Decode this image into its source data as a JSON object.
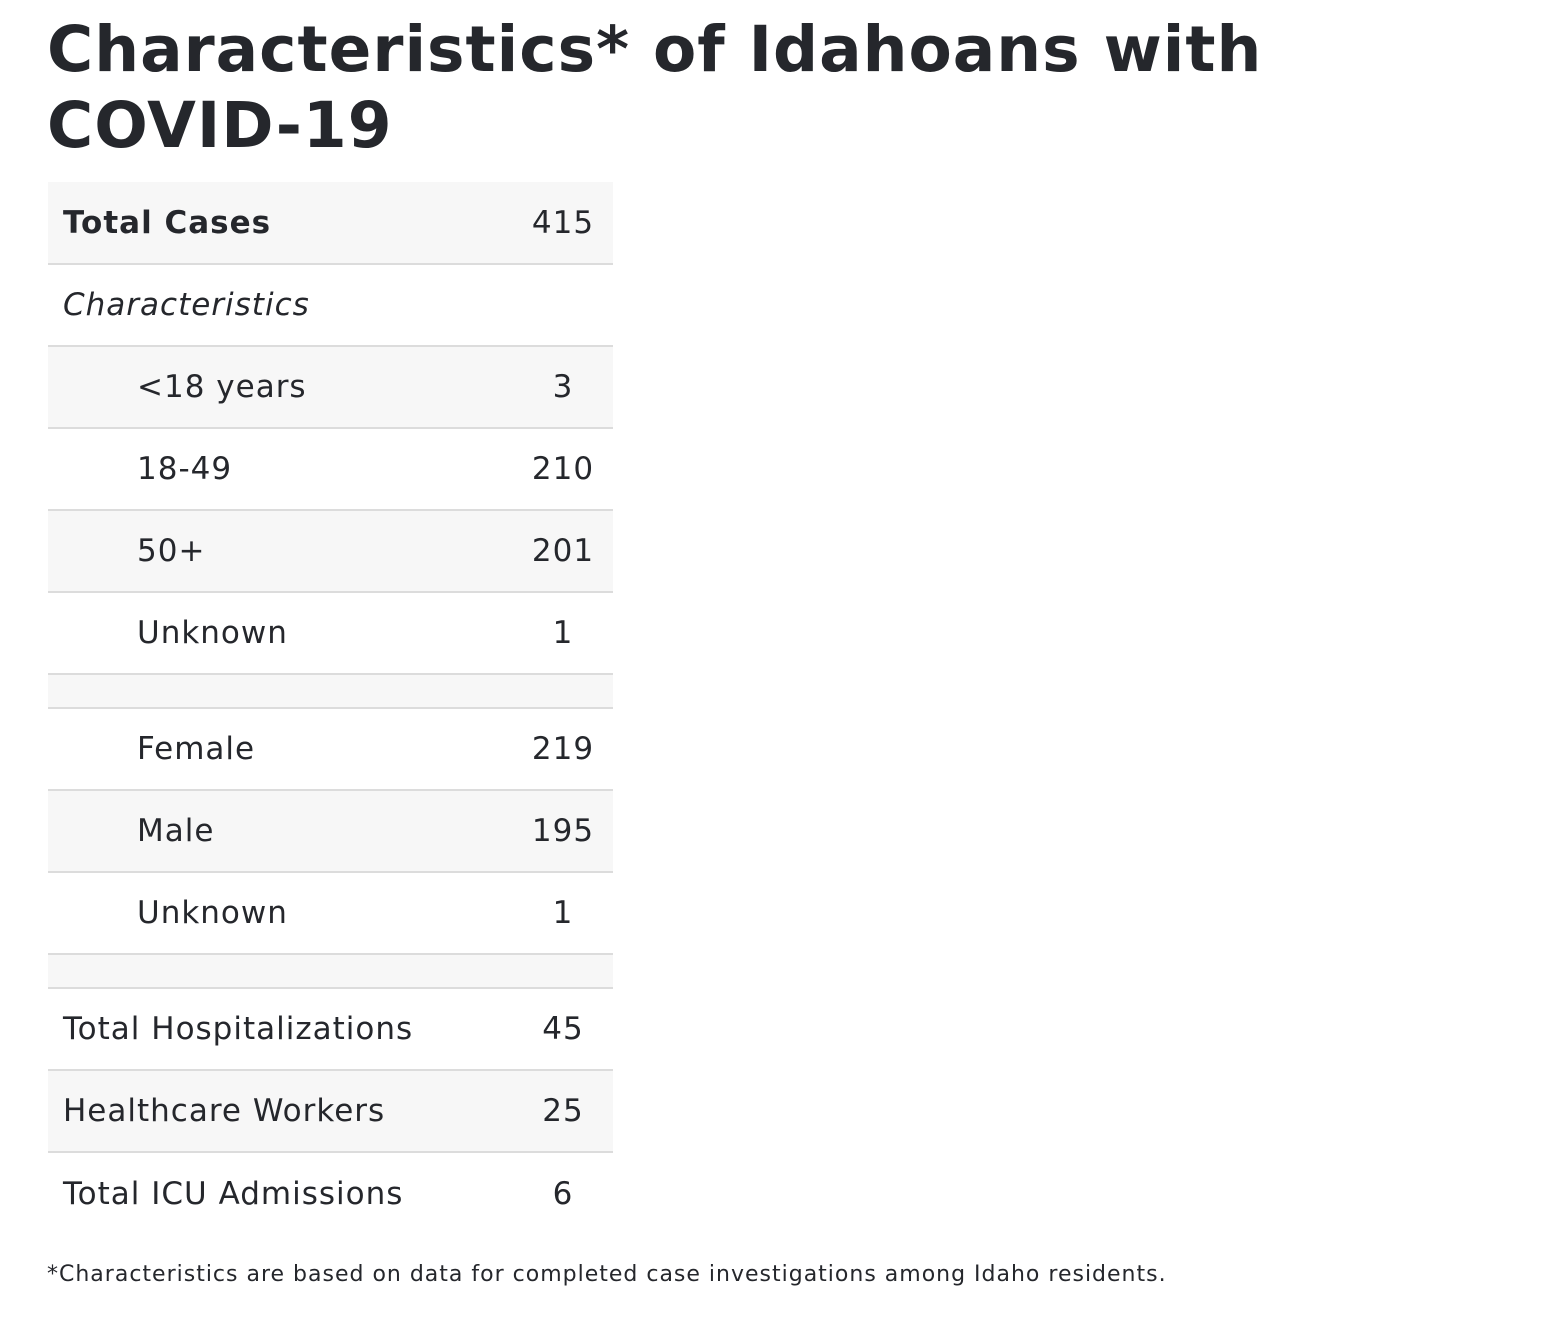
{
  "title": "Characteristics* of Idahoans with COVID-19",
  "table": {
    "total_cases": {
      "label": "Total Cases",
      "value": "415"
    },
    "characteristics_heading": "Characteristics",
    "age_groups": [
      {
        "label": "<18 years",
        "value": "3"
      },
      {
        "label": "18-49",
        "value": "210"
      },
      {
        "label": "50+",
        "value": "201"
      },
      {
        "label": "Unknown",
        "value": "1"
      }
    ],
    "sex_groups": [
      {
        "label": "Female",
        "value": "219"
      },
      {
        "label": "Male",
        "value": "195"
      },
      {
        "label": "Unknown",
        "value": "1"
      }
    ],
    "totals": [
      {
        "label": "Total Hospitalizations",
        "value": "45"
      },
      {
        "label": "Healthcare Workers",
        "value": "25"
      },
      {
        "label": "Total ICU Admissions",
        "value": "6"
      }
    ]
  },
  "footnote": "*Characteristics are based on data for completed case investigations among Idaho residents."
}
